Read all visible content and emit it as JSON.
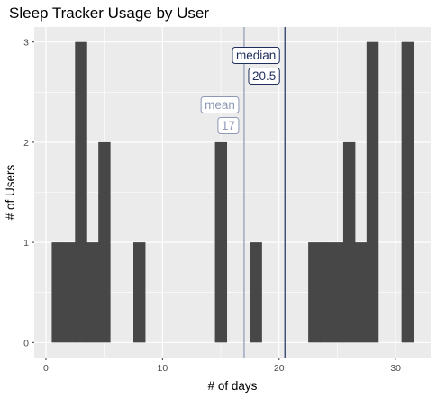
{
  "chart_data": {
    "type": "histogram",
    "title": "Sleep Tracker Usage by User",
    "xlabel": "# of days",
    "ylabel": "# of Users",
    "xlim": [
      -1,
      33
    ],
    "ylim": [
      -0.15,
      3.15
    ],
    "bin_width": 1,
    "x_ticks": [
      0,
      10,
      20,
      30
    ],
    "y_ticks": [
      0,
      1,
      2,
      3
    ],
    "bins": [
      {
        "x": 1,
        "count": 1
      },
      {
        "x": 2,
        "count": 1
      },
      {
        "x": 3,
        "count": 3
      },
      {
        "x": 4,
        "count": 1
      },
      {
        "x": 5,
        "count": 2
      },
      {
        "x": 8,
        "count": 1
      },
      {
        "x": 15,
        "count": 2
      },
      {
        "x": 18,
        "count": 1
      },
      {
        "x": 23,
        "count": 1
      },
      {
        "x": 24,
        "count": 1
      },
      {
        "x": 25,
        "count": 1
      },
      {
        "x": 26,
        "count": 2
      },
      {
        "x": 27,
        "count": 1
      },
      {
        "x": 28,
        "count": 3
      },
      {
        "x": 31,
        "count": 3
      }
    ],
    "reference_lines": [
      {
        "name": "mean",
        "label": "mean",
        "value": 17,
        "value_label": "17",
        "color": "#8c98b4"
      },
      {
        "name": "median",
        "label": "median",
        "value": 20.5,
        "value_label": "20.5",
        "color": "#1f2e5c"
      }
    ],
    "bar_color": "#474747",
    "panel_color": "#ebebeb",
    "grid_color": "#ffffff"
  }
}
